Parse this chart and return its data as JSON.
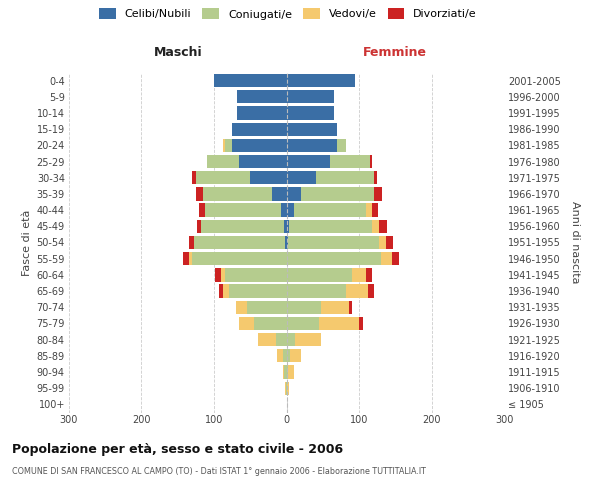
{
  "age_groups": [
    "100+",
    "95-99",
    "90-94",
    "85-89",
    "80-84",
    "75-79",
    "70-74",
    "65-69",
    "60-64",
    "55-59",
    "50-54",
    "45-49",
    "40-44",
    "35-39",
    "30-34",
    "25-29",
    "20-24",
    "15-19",
    "10-14",
    "5-9",
    "0-4"
  ],
  "birth_years": [
    "≤ 1905",
    "1906-1910",
    "1911-1915",
    "1916-1920",
    "1921-1925",
    "1926-1930",
    "1931-1935",
    "1936-1940",
    "1941-1945",
    "1946-1950",
    "1951-1955",
    "1956-1960",
    "1961-1965",
    "1966-1970",
    "1971-1975",
    "1976-1980",
    "1981-1985",
    "1986-1990",
    "1991-1995",
    "1996-2000",
    "2001-2005"
  ],
  "male_celibi": [
    0,
    0,
    0,
    0,
    0,
    0,
    0,
    0,
    0,
    0,
    2,
    3,
    8,
    20,
    50,
    65,
    75,
    75,
    68,
    68,
    100
  ],
  "male_coniugati": [
    0,
    1,
    3,
    5,
    15,
    45,
    55,
    80,
    85,
    130,
    125,
    115,
    105,
    95,
    75,
    45,
    10,
    0,
    0,
    0,
    0
  ],
  "male_vedovi": [
    0,
    1,
    2,
    8,
    25,
    20,
    15,
    8,
    5,
    5,
    0,
    0,
    0,
    0,
    0,
    0,
    3,
    0,
    0,
    0,
    0
  ],
  "male_divorziati": [
    0,
    0,
    0,
    0,
    0,
    0,
    0,
    5,
    8,
    8,
    8,
    5,
    8,
    10,
    5,
    0,
    0,
    0,
    0,
    0,
    0
  ],
  "female_celibi": [
    0,
    0,
    0,
    0,
    0,
    0,
    0,
    0,
    0,
    0,
    2,
    3,
    10,
    20,
    40,
    60,
    70,
    70,
    65,
    65,
    95
  ],
  "female_coniugati": [
    0,
    1,
    2,
    5,
    12,
    45,
    48,
    82,
    90,
    130,
    125,
    115,
    100,
    100,
    80,
    55,
    12,
    0,
    0,
    0,
    0
  ],
  "female_vedovi": [
    1,
    3,
    8,
    15,
    35,
    55,
    38,
    30,
    20,
    15,
    10,
    10,
    8,
    0,
    0,
    0,
    0,
    0,
    0,
    0,
    0
  ],
  "female_divorziati": [
    0,
    0,
    0,
    0,
    0,
    5,
    5,
    8,
    8,
    10,
    10,
    10,
    8,
    12,
    5,
    3,
    0,
    0,
    0,
    0,
    0
  ],
  "colors": {
    "celibi": "#3a6ea5",
    "coniugati": "#b5cc8e",
    "vedovi": "#f5c96e",
    "divorziati": "#cc2222"
  },
  "title": "Popolazione per età, sesso e stato civile - 2006",
  "subtitle": "COMUNE DI SAN FRANCESCO AL CAMPO (TO) - Dati ISTAT 1° gennaio 2006 - Elaborazione TUTTITALIA.IT",
  "label_maschi": "Maschi",
  "label_femmine": "Femmine",
  "ylabel_left": "Fasce di età",
  "ylabel_right": "Anni di nascita",
  "legend_labels": [
    "Celibi/Nubili",
    "Coniugati/e",
    "Vedovi/e",
    "Divorziati/e"
  ],
  "xlim": 300,
  "bg_color": "#ffffff",
  "grid_color": "#cccccc"
}
